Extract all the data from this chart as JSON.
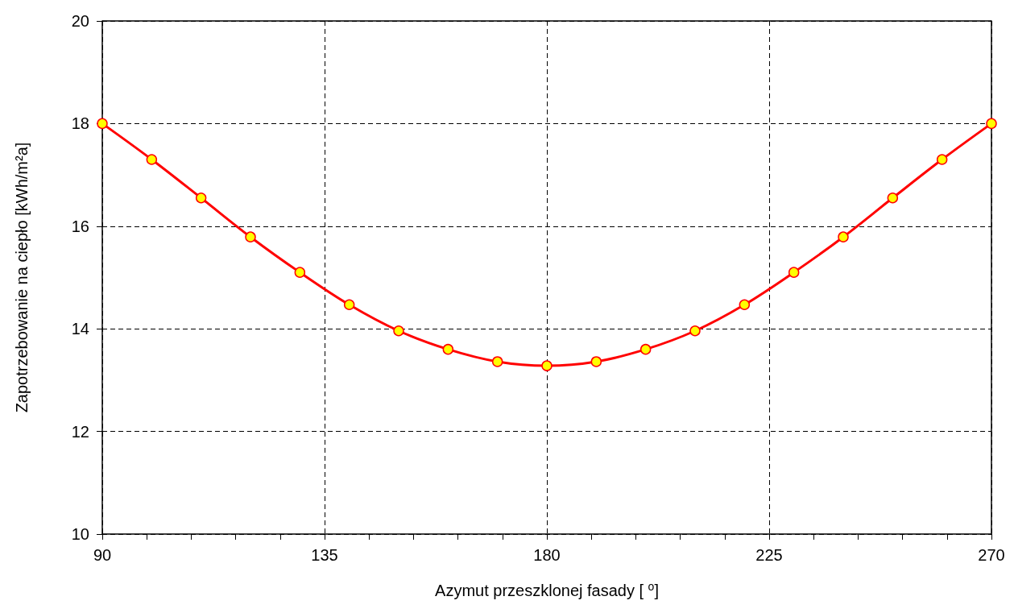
{
  "chart_data": {
    "type": "line",
    "xlabel": "Azymut przeszklonej fasady [ $^{o}$]",
    "ylabel": "Zapotrzebowanie na ciepło [kWh/m²a]",
    "x": [
      90,
      100,
      110,
      120,
      130,
      140,
      150,
      160,
      170,
      180,
      190,
      200,
      210,
      220,
      230,
      240,
      250,
      260,
      270
    ],
    "series": [
      {
        "color": "#ff0000",
        "values": [
          18,
          17.3,
          16.55,
          15.79,
          15.1,
          14.47,
          13.96,
          13.6,
          13.36,
          13.28,
          13.36,
          13.6,
          13.96,
          14.47,
          15.1,
          15.79,
          16.55,
          17.3,
          18
        ]
      }
    ],
    "xlim": [
      90,
      270
    ],
    "xticks": [
      90,
      {
        "value": 99,
        "label": null
      },
      {
        "value": 108,
        "label": null
      },
      {
        "value": 117,
        "label": null
      },
      {
        "value": 126,
        "label": null
      },
      135,
      {
        "value": 144,
        "label": null
      },
      {
        "value": 153,
        "label": null
      },
      {
        "value": 162,
        "label": null
      },
      {
        "value": 171,
        "label": null
      },
      180,
      {
        "value": 189,
        "label": null
      },
      {
        "value": 198,
        "label": null
      },
      {
        "value": 207,
        "label": null
      },
      {
        "value": 216,
        "label": null
      },
      225,
      {
        "value": 234,
        "label": null
      },
      {
        "value": 243,
        "label": null
      },
      {
        "value": 252,
        "label": null
      },
      {
        "value": 261,
        "label": null
      },
      270
    ],
    "ylim": [
      10,
      20
    ],
    "yticks": [
      10,
      12,
      14,
      16,
      18,
      20
    ],
    "grid": true,
    "marker": "circle",
    "line_style": "solid"
  }
}
